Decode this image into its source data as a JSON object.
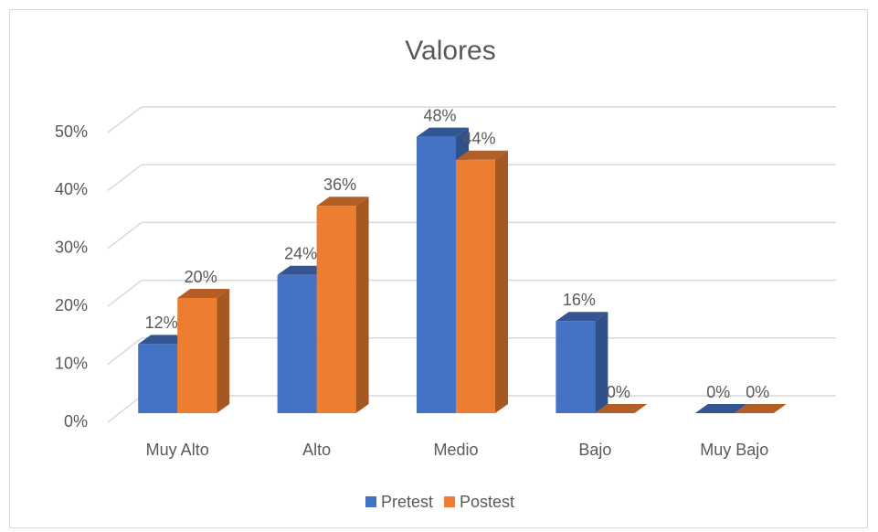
{
  "chart_data": {
    "type": "bar3d",
    "title": "Valores",
    "categories": [
      "Muy Alto",
      "Alto",
      "Medio",
      "Bajo",
      "Muy Bajo"
    ],
    "series": [
      {
        "name": "Pretest",
        "color": "#4472c4",
        "values": [
          12,
          24,
          48,
          16,
          0
        ],
        "value_labels": [
          "12%",
          "24%",
          "48%",
          "16%",
          "0%"
        ]
      },
      {
        "name": "Postest",
        "color": "#ed7d31",
        "values": [
          20,
          36,
          44,
          0,
          0
        ],
        "value_labels": [
          "20%",
          "36%",
          "44%",
          "0%",
          "0%"
        ]
      }
    ],
    "ylim": [
      0,
      50
    ],
    "yticks": [
      {
        "value": 0,
        "label": "0%"
      },
      {
        "value": 10,
        "label": "10%"
      },
      {
        "value": 20,
        "label": "20%"
      },
      {
        "value": 30,
        "label": "30%"
      },
      {
        "value": 40,
        "label": "40%"
      },
      {
        "value": 50,
        "label": "50%"
      }
    ],
    "grid": true,
    "legend": "bottom"
  }
}
